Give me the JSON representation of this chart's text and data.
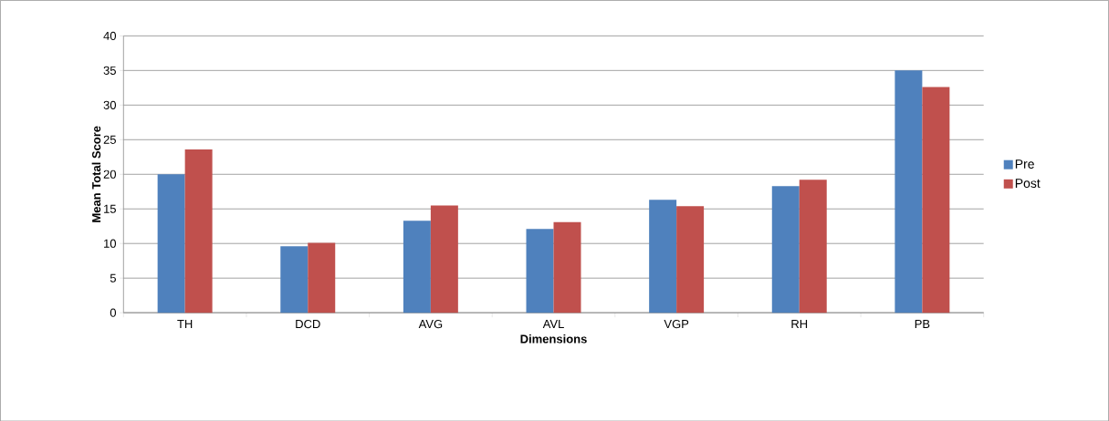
{
  "chart_data": {
    "type": "bar",
    "xlabel": "Dimensions",
    "ylabel": "Mean Total Score",
    "categories": [
      "TH",
      "DCD",
      "AVG",
      "AVL",
      "VGP",
      "RH",
      "PB"
    ],
    "series": [
      {
        "name": "Pre",
        "color": "#4f81bd",
        "values": [
          20,
          9.6,
          13.3,
          12.1,
          16.3,
          18.3,
          35
        ]
      },
      {
        "name": "Post",
        "color": "#c0504d",
        "values": [
          23.6,
          10.1,
          15.5,
          13.1,
          15.4,
          19.2,
          32.6
        ]
      }
    ],
    "ylim": [
      0,
      40
    ],
    "yticks": [
      0,
      5,
      10,
      15,
      20,
      25,
      30,
      35,
      40
    ],
    "grid": "y",
    "legend": "right"
  }
}
